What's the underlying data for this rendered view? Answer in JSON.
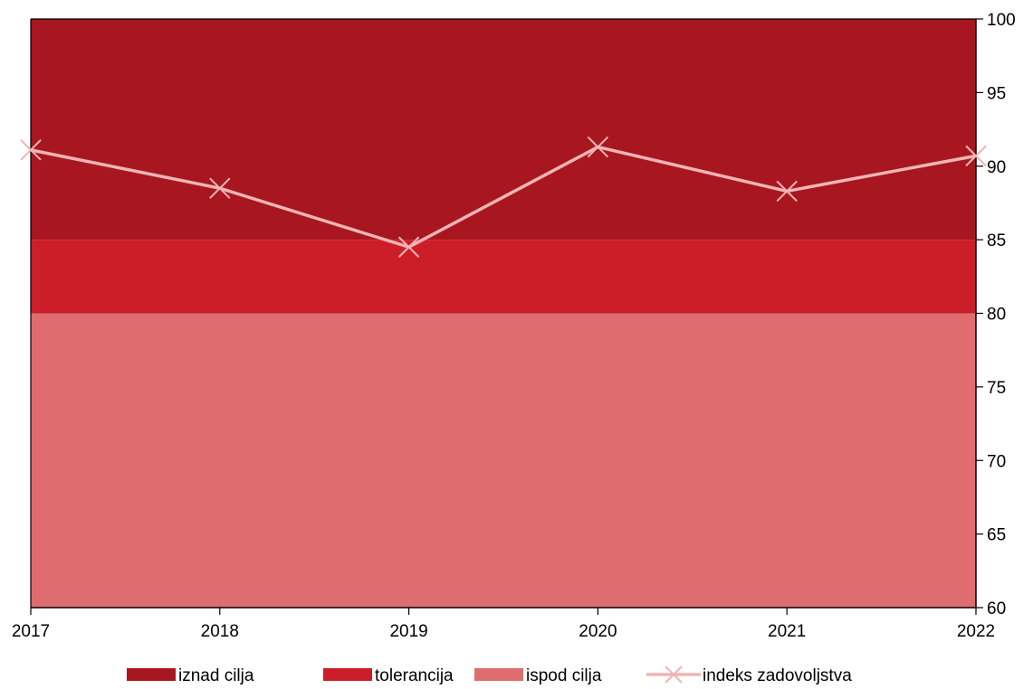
{
  "chart_data": {
    "type": "line",
    "title": "",
    "xlabel": "",
    "ylabel": "",
    "x": [
      "2017",
      "2018",
      "2019",
      "2020",
      "2021",
      "2022"
    ],
    "ylim": [
      60,
      100
    ],
    "yticks": [
      60,
      65,
      70,
      75,
      80,
      85,
      90,
      95,
      100
    ],
    "y_axis_side": "right",
    "grid": false,
    "legend_position": "bottom",
    "bands": [
      {
        "name": "iznad cilja",
        "from": 85,
        "to": 100,
        "color": "#a8171f"
      },
      {
        "name": "tolerancija",
        "from": 80,
        "to": 85,
        "color": "#cb1e28"
      },
      {
        "name": "ispod cilja",
        "from": 60,
        "to": 80,
        "color": "#df6d6f"
      }
    ],
    "series": [
      {
        "name": "indeks zadovoljstva",
        "values": [
          91.1,
          88.5,
          84.5,
          91.3,
          88.3,
          90.7
        ],
        "color": "#f0b4b6",
        "marker": "x"
      }
    ]
  }
}
